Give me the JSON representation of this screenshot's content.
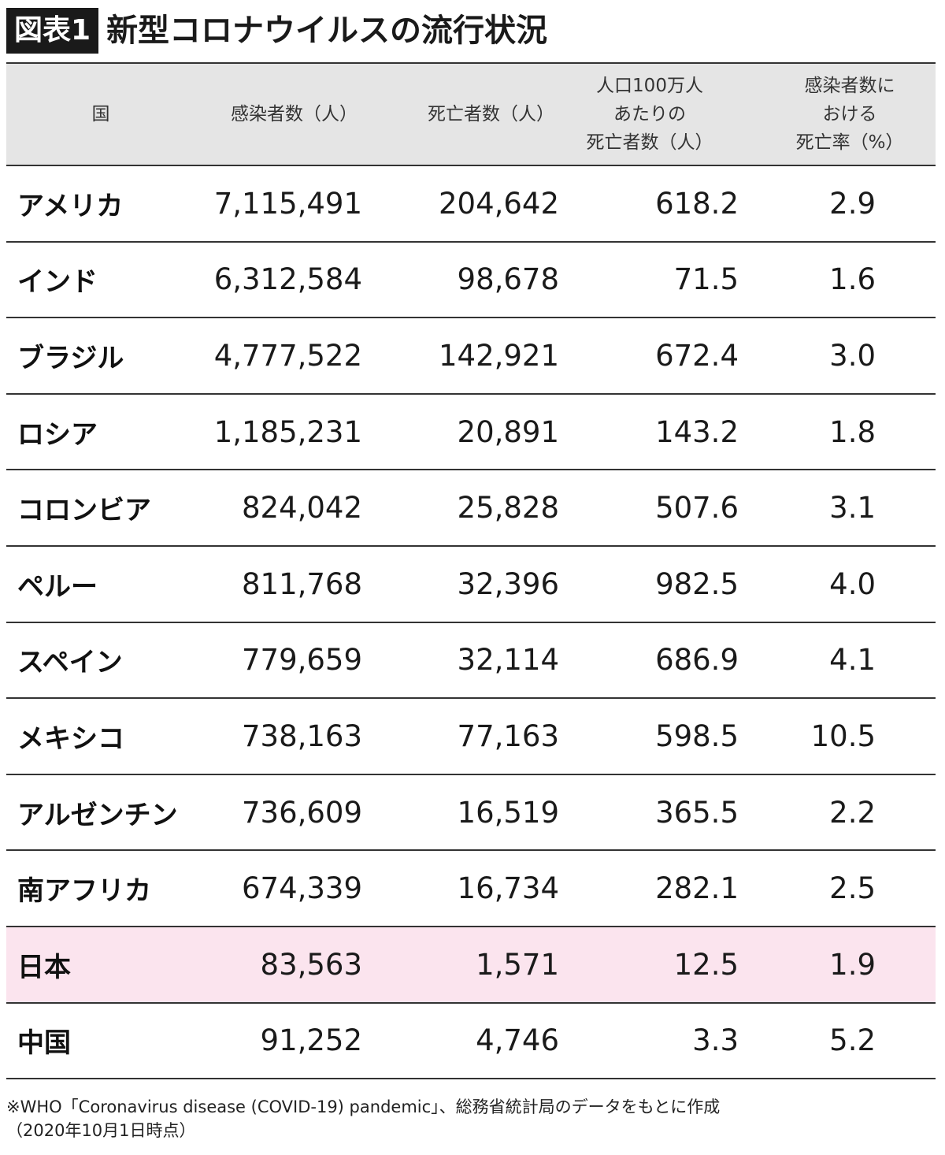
{
  "header": {
    "figure_label": "図表1",
    "title": "新型コロナウイルスの流行状況"
  },
  "chart_data": {
    "type": "table",
    "title": "新型コロナウイルスの流行状況",
    "columns": [
      {
        "key": "country",
        "lines": [
          "国"
        ]
      },
      {
        "key": "cases",
        "lines": [
          "感染者数（人）"
        ]
      },
      {
        "key": "deaths",
        "lines": [
          "死亡者数（人）"
        ]
      },
      {
        "key": "deaths_per_million",
        "lines": [
          "人口100万人",
          "あたりの",
          "死亡者数（人）"
        ]
      },
      {
        "key": "fatality_rate",
        "lines": [
          "感染者数に",
          "おける",
          "死亡率（%）"
        ]
      }
    ],
    "rows": [
      {
        "country": "アメリカ",
        "cases": "7,115,491",
        "deaths": "204,642",
        "deaths_per_million": "618.2",
        "fatality_rate": "2.9"
      },
      {
        "country": "インド",
        "cases": "6,312,584",
        "deaths": "98,678",
        "deaths_per_million": "71.5",
        "fatality_rate": "1.6"
      },
      {
        "country": "ブラジル",
        "cases": "4,777,522",
        "deaths": "142,921",
        "deaths_per_million": "672.4",
        "fatality_rate": "3.0"
      },
      {
        "country": "ロシア",
        "cases": "1,185,231",
        "deaths": "20,891",
        "deaths_per_million": "143.2",
        "fatality_rate": "1.8"
      },
      {
        "country": "コロンビア",
        "cases": "824,042",
        "deaths": "25,828",
        "deaths_per_million": "507.6",
        "fatality_rate": "3.1"
      },
      {
        "country": "ペルー",
        "cases": "811,768",
        "deaths": "32,396",
        "deaths_per_million": "982.5",
        "fatality_rate": "4.0"
      },
      {
        "country": "スペイン",
        "cases": "779,659",
        "deaths": "32,114",
        "deaths_per_million": "686.9",
        "fatality_rate": "4.1"
      },
      {
        "country": "メキシコ",
        "cases": "738,163",
        "deaths": "77,163",
        "deaths_per_million": "598.5",
        "fatality_rate": "10.5"
      },
      {
        "country": "アルゼンチン",
        "cases": "736,609",
        "deaths": "16,519",
        "deaths_per_million": "365.5",
        "fatality_rate": "2.2"
      },
      {
        "country": "南アフリカ",
        "cases": "674,339",
        "deaths": "16,734",
        "deaths_per_million": "282.1",
        "fatality_rate": "2.5"
      },
      {
        "country": "日本",
        "cases": "83,563",
        "deaths": "1,571",
        "deaths_per_million": "12.5",
        "fatality_rate": "1.9",
        "highlight": true
      },
      {
        "country": "中国",
        "cases": "91,252",
        "deaths": "4,746",
        "deaths_per_million": "3.3",
        "fatality_rate": "5.2"
      }
    ]
  },
  "colors": {
    "header_background": "#e5e5e5",
    "highlight_row": "#fbe4ee",
    "label_background": "#1a1a1a"
  },
  "footnote": {
    "line1": "※WHO「Coronavirus disease (COVID-19) pandemic」、総務省統計局のデータをもとに作成",
    "line2": "（2020年10月1日時点）"
  }
}
